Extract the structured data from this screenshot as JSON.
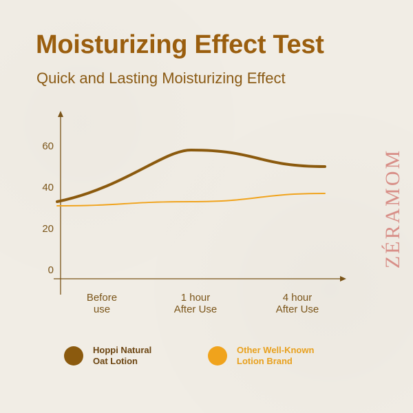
{
  "title": "Moisturizing Effect Test",
  "subtitle": "Quick and Lasting Moisturizing Effect",
  "brand": "ZÉRAMOM",
  "colors": {
    "title": "#9a5e0e",
    "axis": "#7a5418",
    "series_primary": "#8b5a0e",
    "series_secondary": "#f0a31c",
    "brand": "#d88f88"
  },
  "legend": [
    {
      "label": "Hoppi Natural\nOat Lotion",
      "color": "#8b5a0e"
    },
    {
      "label": "Other Well-Known\nLotion Brand",
      "color": "#f0a31c"
    }
  ],
  "chart_data": {
    "type": "line",
    "categories": [
      "Before use",
      "1 hour After Use",
      "4 hour After Use"
    ],
    "category_labels": [
      [
        "Before",
        "use"
      ],
      [
        "1 hour",
        "After Use"
      ],
      [
        "4 hour",
        "After Use"
      ]
    ],
    "yticks": [
      0,
      20,
      40,
      60
    ],
    "ylim": [
      0,
      70
    ],
    "grid": false,
    "legend_position": "bottom",
    "series": [
      {
        "name": "Hoppi Natural Oat Lotion",
        "values": [
          33,
          58,
          50
        ],
        "color": "#8b5a0e",
        "smooth": true
      },
      {
        "name": "Other Well-Known Lotion Brand",
        "values": [
          31,
          33,
          37
        ],
        "color": "#f0a31c",
        "smooth": true
      }
    ]
  }
}
